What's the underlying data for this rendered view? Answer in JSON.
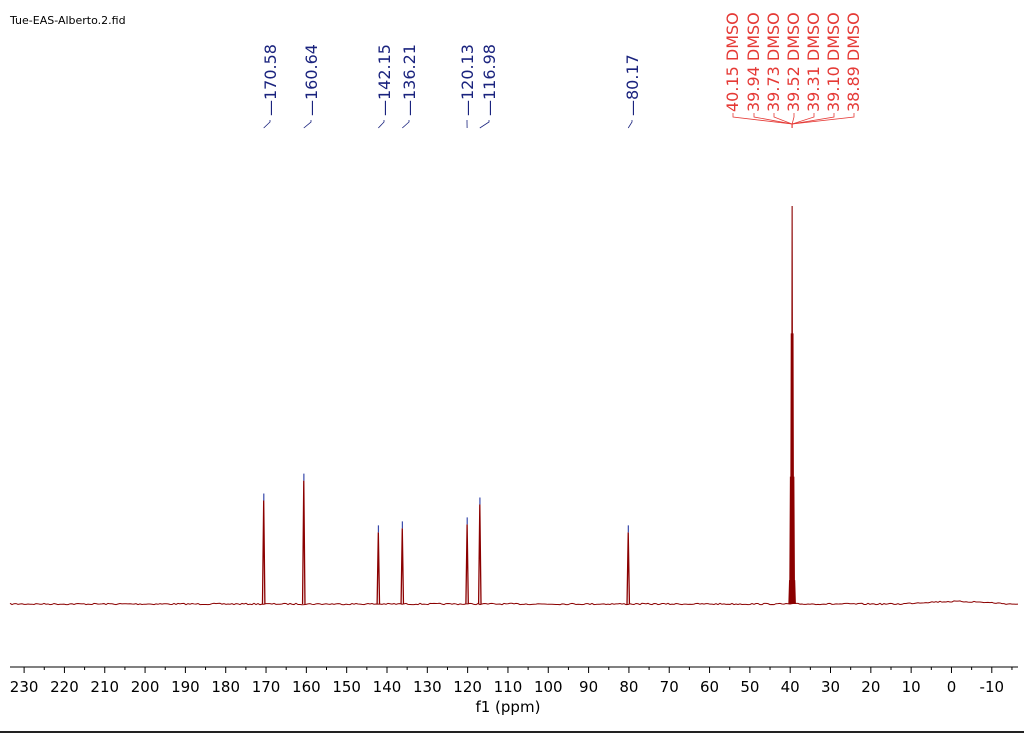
{
  "file_title": "Tue-EAS-Alberto.2.fid",
  "colors": {
    "spectrum": "#8b0000",
    "peak_label": "#1a237e",
    "solvent_label": "#e53935",
    "axis": "#000000"
  },
  "chart_data": {
    "type": "line",
    "title": "",
    "xlabel": "f1 (ppm)",
    "ylabel": "",
    "x_reversed": true,
    "xlim": [
      233.5,
      -16.5
    ],
    "xticks": [
      230,
      220,
      210,
      200,
      190,
      180,
      170,
      160,
      150,
      140,
      130,
      120,
      110,
      100,
      90,
      80,
      70,
      60,
      50,
      40,
      30,
      20,
      10,
      0,
      -10
    ],
    "grid": false,
    "peaks": [
      {
        "ppm": 170.58,
        "label": "170.58",
        "height": 0.26
      },
      {
        "ppm": 160.64,
        "label": "160.64",
        "height": 0.31
      },
      {
        "ppm": 142.15,
        "label": "142.15",
        "height": 0.18
      },
      {
        "ppm": 136.21,
        "label": "136.21",
        "height": 0.19
      },
      {
        "ppm": 120.13,
        "label": "120.13",
        "height": 0.2
      },
      {
        "ppm": 116.98,
        "label": "116.98",
        "height": 0.25
      },
      {
        "ppm": 80.17,
        "label": "80.17",
        "height": 0.18
      }
    ],
    "solvent_peaks": [
      {
        "ppm": 40.15,
        "label": "40.15 DMSO",
        "height": 0.06
      },
      {
        "ppm": 39.94,
        "label": "39.94 DMSO",
        "height": 0.32
      },
      {
        "ppm": 39.73,
        "label": "39.73 DMSO",
        "height": 0.68
      },
      {
        "ppm": 39.52,
        "label": "39.52 DMSO",
        "height": 1.0
      },
      {
        "ppm": 39.31,
        "label": "39.31 DMSO",
        "height": 0.68
      },
      {
        "ppm": 39.1,
        "label": "39.10 DMSO",
        "height": 0.32
      },
      {
        "ppm": 38.89,
        "label": "38.89 DMSO",
        "height": 0.06
      }
    ]
  }
}
